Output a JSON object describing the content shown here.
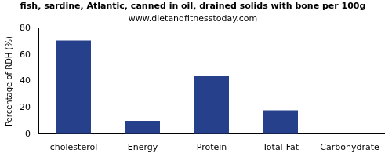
{
  "chart_data": {
    "type": "bar",
    "title": "fish, sardine, Atlantic, canned in oil, drained solids with bone per 100g",
    "subtitle": "www.dietandfitnesstoday.com",
    "y_label": "Percentage of RDH (%)",
    "categories": [
      "cholesterol",
      "Energy",
      "Protein",
      "Total-Fat",
      "Carbohydrate"
    ],
    "values": [
      71,
      10,
      44,
      18,
      0
    ],
    "color": "#27408b",
    "ylim": [
      0,
      80
    ],
    "yticks": [
      0,
      20,
      40,
      60,
      80
    ],
    "grid": false
  }
}
